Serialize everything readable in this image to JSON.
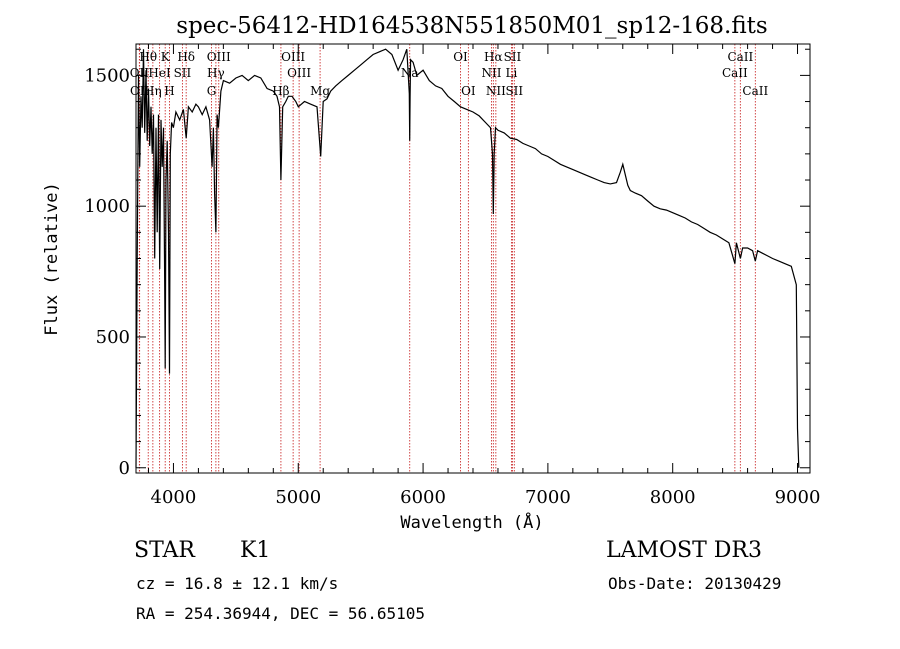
{
  "chart_data": {
    "type": "line",
    "title": "spec-56412-HD164538N551850M01_sp12-168.fits",
    "xlabel": "Wavelength (Å)",
    "ylabel": "Flux (relative)",
    "xlim": [
      3700,
      9100
    ],
    "ylim": [
      -20,
      1620
    ],
    "xticks": [
      4000,
      5000,
      6000,
      7000,
      8000,
      9000
    ],
    "yticks": [
      0,
      500,
      1000,
      1500
    ],
    "series": [
      {
        "name": "flux",
        "x": [
          3700,
          3710,
          3720,
          3730,
          3740,
          3750,
          3760,
          3770,
          3780,
          3790,
          3800,
          3810,
          3820,
          3830,
          3840,
          3850,
          3860,
          3870,
          3880,
          3890,
          3900,
          3910,
          3920,
          3930,
          3934,
          3940,
          3950,
          3960,
          3968,
          3975,
          3985,
          4000,
          4020,
          4050,
          4080,
          4102,
          4120,
          4150,
          4180,
          4200,
          4230,
          4260,
          4290,
          4310,
          4320,
          4330,
          4340,
          4350,
          4360,
          4380,
          4400,
          4450,
          4500,
          4550,
          4600,
          4650,
          4700,
          4750,
          4800,
          4830,
          4850,
          4861,
          4875,
          4900,
          4920,
          4950,
          4980,
          5000,
          5050,
          5100,
          5150,
          5180,
          5200,
          5230,
          5260,
          5300,
          5350,
          5400,
          5450,
          5500,
          5550,
          5600,
          5650,
          5700,
          5750,
          5800,
          5840,
          5870,
          5890,
          5893,
          5896,
          5900,
          5920,
          5950,
          6000,
          6050,
          6100,
          6150,
          6200,
          6250,
          6300,
          6350,
          6400,
          6450,
          6500,
          6540,
          6556,
          6563,
          6570,
          6580,
          6600,
          6650,
          6700,
          6750,
          6800,
          6850,
          6900,
          6950,
          7000,
          7050,
          7100,
          7150,
          7200,
          7250,
          7300,
          7350,
          7400,
          7450,
          7500,
          7550,
          7580,
          7600,
          7620,
          7640,
          7660,
          7700,
          7750,
          7800,
          7850,
          7900,
          7950,
          8000,
          8050,
          8100,
          8150,
          8200,
          8250,
          8300,
          8350,
          8400,
          8450,
          8498,
          8510,
          8542,
          8560,
          8600,
          8640,
          8662,
          8680,
          8720,
          8760,
          8800,
          8850,
          8900,
          8950,
          8990,
          9000,
          9010
        ],
        "y": [
          0,
          800,
          1500,
          1150,
          1420,
          1300,
          1600,
          1280,
          1520,
          1250,
          1450,
          1230,
          1380,
          1200,
          1350,
          800,
          1300,
          900,
          1350,
          760,
          1330,
          1150,
          1300,
          700,
          380,
          1100,
          1250,
          900,
          360,
          1200,
          1320,
          1300,
          1360,
          1330,
          1370,
          1260,
          1380,
          1360,
          1390,
          1380,
          1350,
          1380,
          1330,
          1150,
          1300,
          1050,
          900,
          1350,
          1300,
          1440,
          1480,
          1470,
          1490,
          1500,
          1480,
          1500,
          1490,
          1450,
          1440,
          1420,
          1380,
          1100,
          1380,
          1400,
          1420,
          1420,
          1400,
          1380,
          1400,
          1390,
          1380,
          1190,
          1400,
          1410,
          1440,
          1460,
          1480,
          1500,
          1520,
          1540,
          1560,
          1580,
          1590,
          1600,
          1580,
          1520,
          1560,
          1600,
          1430,
          1250,
          1420,
          1560,
          1550,
          1500,
          1520,
          1480,
          1460,
          1450,
          1420,
          1400,
          1380,
          1370,
          1360,
          1345,
          1320,
          1300,
          1200,
          970,
          1200,
          1300,
          1290,
          1280,
          1260,
          1255,
          1240,
          1230,
          1220,
          1200,
          1190,
          1175,
          1160,
          1150,
          1140,
          1130,
          1120,
          1110,
          1100,
          1090,
          1085,
          1090,
          1130,
          1160,
          1120,
          1080,
          1060,
          1050,
          1040,
          1020,
          1000,
          990,
          985,
          975,
          965,
          955,
          940,
          930,
          915,
          900,
          890,
          875,
          860,
          780,
          860,
          800,
          840,
          840,
          830,
          790,
          830,
          820,
          810,
          800,
          790,
          780,
          770,
          700,
          150,
          0
        ]
      }
    ],
    "lines": [
      {
        "name": "OII",
        "x": 3727,
        "row": 2
      },
      {
        "name": "OII",
        "x": 3729,
        "row": 3
      },
      {
        "name": "Hθ",
        "x": 3798,
        "row": 1
      },
      {
        "name": "Hη",
        "x": 3835,
        "row": 3
      },
      {
        "name": "HeI",
        "x": 3889,
        "row": 2
      },
      {
        "name": "K",
        "x": 3934,
        "row": 1
      },
      {
        "name": "H",
        "x": 3968,
        "row": 3
      },
      {
        "name": "SII",
        "x": 4072,
        "row": 2
      },
      {
        "name": "Hδ",
        "x": 4102,
        "row": 1
      },
      {
        "name": "OIII",
        "x": 4363,
        "row": 1
      },
      {
        "name": "Hγ",
        "x": 4340,
        "row": 2
      },
      {
        "name": "G",
        "x": 4305,
        "row": 3
      },
      {
        "name": "Hβ",
        "x": 4861,
        "row": 3
      },
      {
        "name": "OIII",
        "x": 4959,
        "row": 1
      },
      {
        "name": "OIII",
        "x": 5007,
        "row": 2
      },
      {
        "name": "Mg",
        "x": 5175,
        "row": 3
      },
      {
        "name": "Na",
        "x": 5893,
        "row": 2
      },
      {
        "name": "OI",
        "x": 6300,
        "row": 1
      },
      {
        "name": "OI",
        "x": 6363,
        "row": 3
      },
      {
        "name": "Hα",
        "x": 6563,
        "row": 1
      },
      {
        "name": "NII",
        "x": 6548,
        "row": 2
      },
      {
        "name": "NII",
        "x": 6583,
        "row": 3
      },
      {
        "name": "SII",
        "x": 6716,
        "row": 1
      },
      {
        "name": "Li",
        "x": 6708,
        "row": 2
      },
      {
        "name": "SII",
        "x": 6731,
        "row": 3
      },
      {
        "name": "CaII",
        "x": 8498,
        "row": 2
      },
      {
        "name": "CaII",
        "x": 8542,
        "row": 1
      },
      {
        "name": "CaII",
        "x": 8662,
        "row": 3
      }
    ]
  },
  "info": {
    "class": "STAR",
    "subclass": "K1",
    "survey": "LAMOST DR3",
    "cz": "cz = 16.8 ± 12.1 km/s",
    "obs_date": "Obs-Date: 20130429",
    "radec": "RA = 254.36944, DEC =  56.65105"
  },
  "colors": {
    "line_marker": "#cc3333",
    "spectrum": "#000000"
  }
}
